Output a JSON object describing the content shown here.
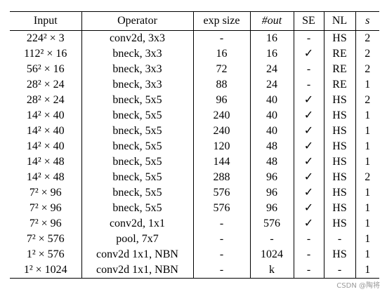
{
  "table": {
    "header": [
      "Input",
      "Operator",
      "exp size",
      "#out",
      "SE",
      "NL",
      "s"
    ],
    "rows": [
      [
        "224² × 3",
        "conv2d, 3x3",
        "-",
        "16",
        "-",
        "HS",
        "2"
      ],
      [
        "112² × 16",
        "bneck, 3x3",
        "16",
        "16",
        "✓",
        "RE",
        "2"
      ],
      [
        "56² × 16",
        "bneck, 3x3",
        "72",
        "24",
        "-",
        "RE",
        "2"
      ],
      [
        "28² × 24",
        "bneck, 3x3",
        "88",
        "24",
        "-",
        "RE",
        "1"
      ],
      [
        "28² × 24",
        "bneck, 5x5",
        "96",
        "40",
        "✓",
        "HS",
        "2"
      ],
      [
        "14² × 40",
        "bneck, 5x5",
        "240",
        "40",
        "✓",
        "HS",
        "1"
      ],
      [
        "14² × 40",
        "bneck, 5x5",
        "240",
        "40",
        "✓",
        "HS",
        "1"
      ],
      [
        "14² × 40",
        "bneck, 5x5",
        "120",
        "48",
        "✓",
        "HS",
        "1"
      ],
      [
        "14² × 48",
        "bneck, 5x5",
        "144",
        "48",
        "✓",
        "HS",
        "1"
      ],
      [
        "14² × 48",
        "bneck, 5x5",
        "288",
        "96",
        "✓",
        "HS",
        "2"
      ],
      [
        "7² × 96",
        "bneck, 5x5",
        "576",
        "96",
        "✓",
        "HS",
        "1"
      ],
      [
        "7² × 96",
        "bneck, 5x5",
        "576",
        "96",
        "✓",
        "HS",
        "1"
      ],
      [
        "7² × 96",
        "conv2d, 1x1",
        "-",
        "576",
        "✓",
        "HS",
        "1"
      ],
      [
        "7² × 576",
        "pool, 7x7",
        "-",
        "-",
        "-",
        "-",
        "1"
      ],
      [
        "1² × 576",
        "conv2d 1x1, NBN",
        "-",
        "1024",
        "-",
        "HS",
        "1"
      ],
      [
        "1² × 1024",
        "conv2d 1x1, NBN",
        "-",
        "k",
        "-",
        "-",
        "1"
      ]
    ]
  },
  "watermark": "CSDN @陶将"
}
